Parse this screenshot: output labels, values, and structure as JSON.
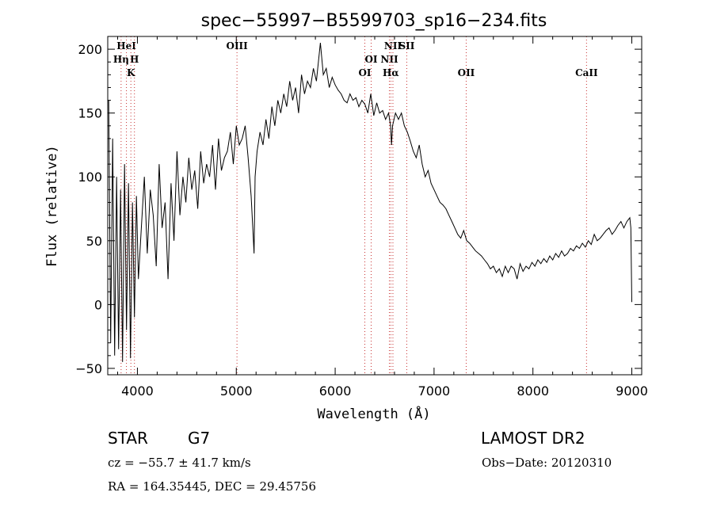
{
  "chart_data": {
    "type": "line",
    "title": "spec−55997−B5599703_sp16−234.fits",
    "xlabel": "Wavelength (Å)",
    "ylabel": "Flux (relative)",
    "xlim": [
      3700,
      9100
    ],
    "ylim": [
      -55,
      210
    ],
    "xticks": [
      4000,
      5000,
      6000,
      7000,
      8000,
      9000
    ],
    "yticks": [
      -50,
      0,
      50,
      100,
      150,
      200
    ],
    "ytick_labels": [
      "−50",
      "0",
      "50",
      "100",
      "150",
      "200"
    ],
    "grid": false,
    "series": [
      {
        "x": [
          3710,
          3730,
          3750,
          3770,
          3790,
          3810,
          3830,
          3850,
          3870,
          3890,
          3910,
          3930,
          3950,
          3970,
          3990,
          4010,
          4040,
          4070,
          4100,
          4130,
          4160,
          4190,
          4220,
          4250,
          4280,
          4310,
          4340,
          4370,
          4400,
          4430,
          4460,
          4490,
          4520,
          4550,
          4580,
          4610,
          4640,
          4670,
          4700,
          4730,
          4760,
          4790,
          4820,
          4850,
          4880,
          4910,
          4940,
          4970,
          5000,
          5030,
          5060,
          5090,
          5120,
          5150,
          5170,
          5180,
          5190,
          5210,
          5240,
          5270,
          5300,
          5330,
          5360,
          5390,
          5420,
          5450,
          5480,
          5510,
          5540,
          5570,
          5600,
          5630,
          5660,
          5690,
          5720,
          5750,
          5780,
          5810,
          5830,
          5850,
          5880,
          5910,
          5940,
          5970,
          6000,
          6030,
          6060,
          6090,
          6120,
          6150,
          6180,
          6210,
          6240,
          6270,
          6300,
          6330,
          6360,
          6390,
          6420,
          6450,
          6480,
          6510,
          6540,
          6560,
          6570,
          6580,
          6610,
          6640,
          6670,
          6700,
          6730,
          6760,
          6790,
          6820,
          6850,
          6880,
          6910,
          6940,
          6970,
          7000,
          7030,
          7060,
          7090,
          7120,
          7150,
          7180,
          7210,
          7240,
          7270,
          7300,
          7330,
          7360,
          7390,
          7420,
          7450,
          7480,
          7510,
          7540,
          7570,
          7600,
          7630,
          7660,
          7690,
          7720,
          7750,
          7780,
          7810,
          7840,
          7870,
          7900,
          7930,
          7960,
          7990,
          8020,
          8050,
          8080,
          8110,
          8140,
          8170,
          8200,
          8230,
          8260,
          8290,
          8320,
          8350,
          8380,
          8410,
          8440,
          8470,
          8500,
          8530,
          8560,
          8590,
          8620,
          8650,
          8680,
          8710,
          8740,
          8770,
          8800,
          8830,
          8860,
          8890,
          8920,
          8950,
          8980,
          8990,
          9000
        ],
        "y": [
          160,
          -30,
          130,
          -40,
          100,
          -35,
          90,
          -45,
          110,
          -20,
          95,
          -42,
          80,
          -10,
          85,
          20,
          60,
          100,
          40,
          90,
          70,
          30,
          110,
          60,
          80,
          20,
          95,
          50,
          120,
          70,
          100,
          80,
          115,
          90,
          105,
          75,
          120,
          95,
          110,
          100,
          125,
          90,
          130,
          105,
          115,
          120,
          135,
          110,
          140,
          125,
          130,
          140,
          115,
          85,
          55,
          40,
          100,
          120,
          135,
          125,
          145,
          130,
          155,
          140,
          160,
          150,
          165,
          155,
          175,
          160,
          170,
          150,
          180,
          165,
          175,
          170,
          185,
          175,
          190,
          205,
          180,
          185,
          170,
          178,
          172,
          168,
          165,
          160,
          158,
          165,
          160,
          162,
          155,
          160,
          157,
          150,
          165,
          148,
          158,
          150,
          152,
          145,
          150,
          140,
          125,
          140,
          150,
          145,
          150,
          140,
          135,
          128,
          120,
          115,
          125,
          110,
          100,
          105,
          95,
          90,
          85,
          80,
          78,
          75,
          70,
          65,
          60,
          55,
          52,
          58,
          50,
          48,
          45,
          42,
          40,
          38,
          35,
          32,
          28,
          30,
          25,
          28,
          22,
          30,
          25,
          30,
          28,
          20,
          32,
          26,
          30,
          28,
          33,
          30,
          35,
          32,
          36,
          33,
          38,
          35,
          40,
          37,
          42,
          38,
          40,
          44,
          42,
          46,
          44,
          48,
          45,
          50,
          47,
          55,
          50,
          52,
          55,
          58,
          60,
          55,
          58,
          62,
          65,
          60,
          65,
          68,
          60,
          2
        ]
      }
    ],
    "reference_lines": [
      {
        "label": "HeI",
        "x": 3889,
        "row": 1
      },
      {
        "label": "Hη",
        "x": 3835,
        "row": 2
      },
      {
        "label": "H",
        "x": 3970,
        "row": 2
      },
      {
        "label": "K",
        "x": 3934,
        "row": 3
      },
      {
        "label": "OIII",
        "x": 5007,
        "row": 1
      },
      {
        "label": "OI",
        "x": 6364,
        "row": 2
      },
      {
        "label": "OI",
        "x": 6300,
        "row": 3
      },
      {
        "label": "NII",
        "x": 6584,
        "row": 1
      },
      {
        "label": "SII",
        "x": 6724,
        "row": 1
      },
      {
        "label": "NII",
        "x": 6548,
        "row": 2
      },
      {
        "label": "Hα",
        "x": 6563,
        "row": 3
      },
      {
        "label": "OII",
        "x": 7325,
        "row": 3
      },
      {
        "label": "CaII",
        "x": 8542,
        "row": 3
      }
    ]
  },
  "info": {
    "object_class": "STAR",
    "subclass": "G7",
    "survey": "LAMOST DR2",
    "redshift_text": "cz = −55.7 ± 41.7 km/s",
    "obs_date_text": "Obs−Date: 20120310",
    "coords_text": "RA = 164.35445, DEC =  29.45756"
  },
  "colors": {
    "spectrum": "#000000",
    "reference_line": "#c83232",
    "axes": "#000000"
  }
}
